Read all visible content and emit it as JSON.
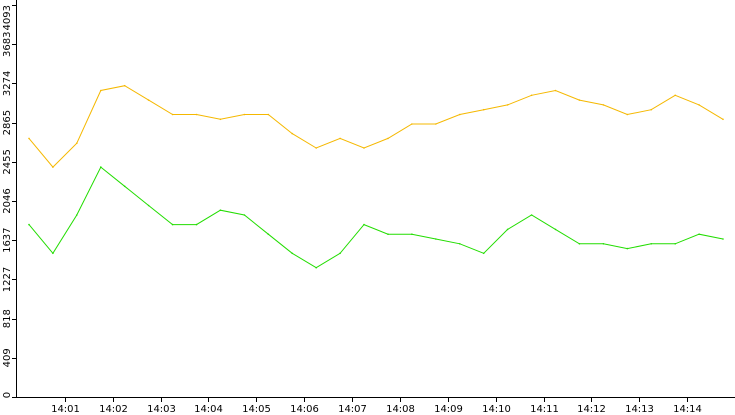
{
  "chart_data": {
    "type": "line",
    "title": "",
    "xlabel": "",
    "ylabel": "",
    "ylim": [
      0,
      4093
    ],
    "y_ticks": [
      0,
      409,
      818,
      1227,
      1637,
      2046,
      2455,
      2865,
      3274,
      3683,
      4093
    ],
    "y_tick_labels": [
      "0",
      "409",
      "818",
      "1227",
      "1637",
      "2046",
      "2455",
      "2865",
      "3274",
      "3683",
      "4093"
    ],
    "x_tick_labels": [
      "14:01",
      "14:02",
      "14:03",
      "14:04",
      "14:05",
      "14:06",
      "14:07",
      "14:08",
      "14:09",
      "14:10",
      "14:11",
      "14:12",
      "14:13",
      "14:14"
    ],
    "grid": false,
    "colors": {
      "series_a": "#f5b800",
      "series_b": "#22dd00",
      "axis": "#000000"
    },
    "series": [
      {
        "color": "#f5b800",
        "x": [
          "14:00:15",
          "14:00:45",
          "14:01:15",
          "14:01:45",
          "14:02:15",
          "14:02:45",
          "14:03:15",
          "14:03:45",
          "14:04:15",
          "14:04:45",
          "14:05:15",
          "14:05:45",
          "14:06:15",
          "14:06:45",
          "14:07:15",
          "14:07:45",
          "14:08:15",
          "14:08:45",
          "14:09:15",
          "14:09:45",
          "14:10:15",
          "14:10:45",
          "14:11:15",
          "14:11:45",
          "14:12:15",
          "14:12:45",
          "14:13:15",
          "14:13:45",
          "14:14:15",
          "14:14:45"
        ],
        "values": [
          2700,
          2400,
          2650,
          3200,
          3250,
          3100,
          2950,
          2950,
          2900,
          2950,
          2950,
          2750,
          2600,
          2700,
          2600,
          2700,
          2850,
          2850,
          2950,
          3000,
          3050,
          3150,
          3200,
          3100,
          3050,
          2950,
          3000,
          3150,
          3050,
          2900
        ]
      },
      {
        "color": "#22dd00",
        "x": [
          "14:00:15",
          "14:00:45",
          "14:01:15",
          "14:01:45",
          "14:02:15",
          "14:02:45",
          "14:03:15",
          "14:03:45",
          "14:04:15",
          "14:04:45",
          "14:05:15",
          "14:05:45",
          "14:06:15",
          "14:06:45",
          "14:07:15",
          "14:07:45",
          "14:08:15",
          "14:08:45",
          "14:09:15",
          "14:09:45",
          "14:10:15",
          "14:10:45",
          "14:11:15",
          "14:11:45",
          "14:12:15",
          "14:12:45",
          "14:13:15",
          "14:13:45",
          "14:14:15",
          "14:14:45"
        ],
        "values": [
          1800,
          1500,
          1900,
          2400,
          2200,
          2000,
          1800,
          1800,
          1950,
          1900,
          1700,
          1500,
          1350,
          1500,
          1800,
          1700,
          1700,
          1650,
          1600,
          1500,
          1750,
          1900,
          1750,
          1600,
          1600,
          1550,
          1600,
          1600,
          1700,
          1650
        ]
      }
    ]
  }
}
